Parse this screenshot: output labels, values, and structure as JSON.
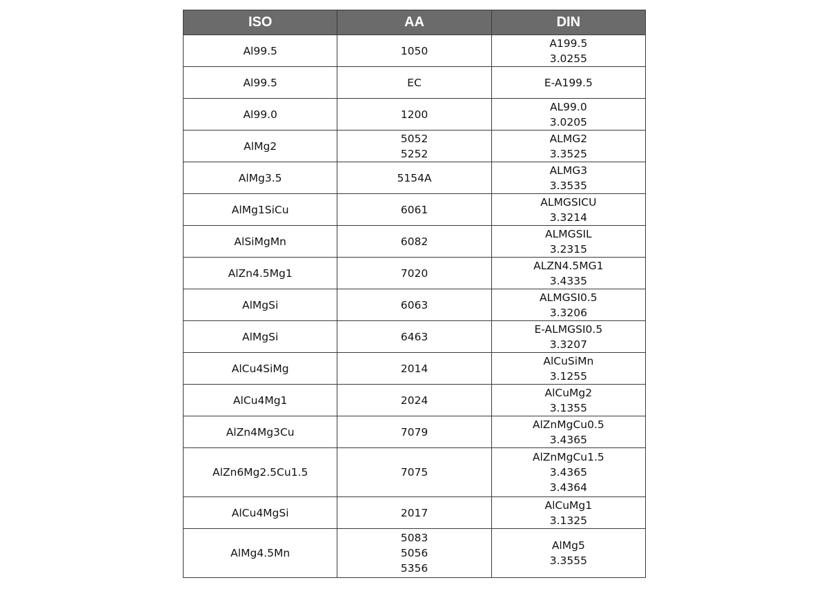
{
  "headers": [
    "ISO",
    "AA",
    "DIN"
  ],
  "rows": [
    {
      "iso": [
        "Al99.5"
      ],
      "aa": [
        "1050"
      ],
      "din": [
        "A199.5",
        "3.0255"
      ]
    },
    {
      "iso": [
        "Al99.5"
      ],
      "aa": [
        "EC"
      ],
      "din": [
        "E-A199.5"
      ]
    },
    {
      "iso": [
        "Al99.0"
      ],
      "aa": [
        "1200"
      ],
      "din": [
        "AL99.0",
        "3.0205"
      ]
    },
    {
      "iso": [
        "AlMg2"
      ],
      "aa": [
        "5052",
        "5252"
      ],
      "din": [
        "ALMG2",
        "3.3525"
      ]
    },
    {
      "iso": [
        "AlMg3.5"
      ],
      "aa": [
        "5154A"
      ],
      "din": [
        "ALMG3",
        "3.3535"
      ]
    },
    {
      "iso": [
        "AlMg1SiCu"
      ],
      "aa": [
        "6061"
      ],
      "din": [
        "ALMGSICU",
        "3.3214"
      ]
    },
    {
      "iso": [
        "AlSiMgMn"
      ],
      "aa": [
        "6082"
      ],
      "din": [
        "ALMGSIL",
        "3.2315"
      ]
    },
    {
      "iso": [
        "AlZn4.5Mg1"
      ],
      "aa": [
        "7020"
      ],
      "din": [
        "ALZN4.5MG1",
        "3.4335"
      ]
    },
    {
      "iso": [
        "AlMgSi"
      ],
      "aa": [
        "6063"
      ],
      "din": [
        "ALMGSI0.5",
        "3.3206"
      ]
    },
    {
      "iso": [
        "AlMgSi"
      ],
      "aa": [
        "6463"
      ],
      "din": [
        "E-ALMGSI0.5",
        "3.3207"
      ]
    },
    {
      "iso": [
        "AlCu4SiMg"
      ],
      "aa": [
        "2014"
      ],
      "din": [
        "AlCuSiMn",
        "3.1255"
      ]
    },
    {
      "iso": [
        "AlCu4Mg1"
      ],
      "aa": [
        "2024"
      ],
      "din": [
        "AlCuMg2",
        "3.1355"
      ]
    },
    {
      "iso": [
        "AlZn4Mg3Cu"
      ],
      "aa": [
        "7079"
      ],
      "din": [
        "AlZnMgCu0.5",
        "3.4365"
      ]
    },
    {
      "iso": [
        "AlZn6Mg2.5Cu1.5"
      ],
      "aa": [
        "7075"
      ],
      "din": [
        "AlZnMgCu1.5",
        "3.4365",
        "3.4364"
      ]
    },
    {
      "iso": [
        "AlCu4MgSi"
      ],
      "aa": [
        "2017"
      ],
      "din": [
        "AlCuMg1",
        "3.1325"
      ]
    },
    {
      "iso": [
        "AlMg4.5Mn"
      ],
      "aa": [
        "5083",
        "5056",
        "5356"
      ],
      "din": [
        "AlMg5",
        "3.3555"
      ]
    }
  ]
}
